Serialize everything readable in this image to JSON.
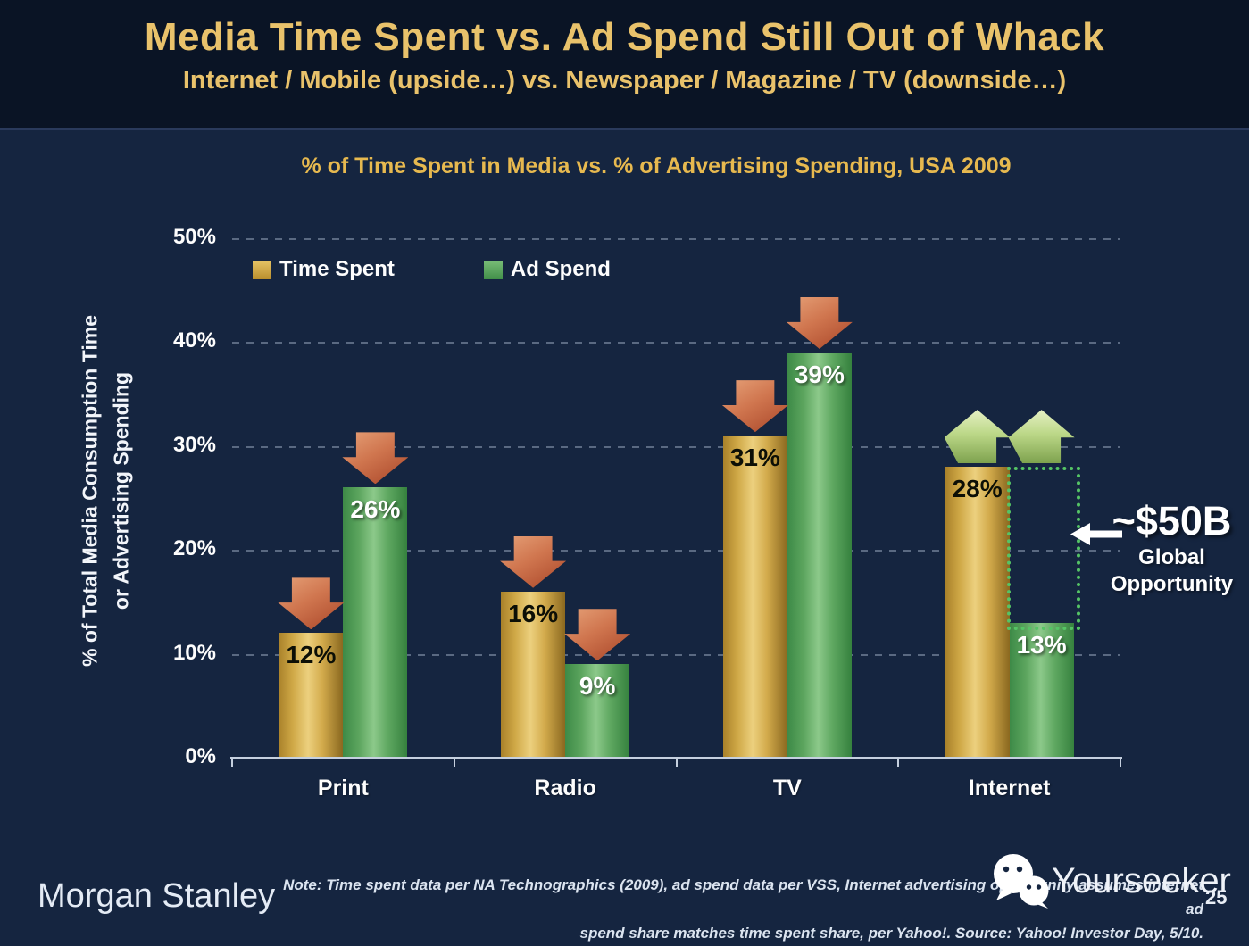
{
  "slide": {
    "title": "Media Time Spent vs. Ad Spend Still Out of Whack",
    "subtitle": "Internet / Mobile (upside…) vs. Newspaper / Magazine / TV (downside…)"
  },
  "chart_data": {
    "type": "bar",
    "title": "% of Time Spent in Media vs. % of Advertising Spending, USA 2009",
    "ylabel": "% of Total Media Consumption Time or Advertising Spending",
    "ylabel_lines": [
      "% of Total Media Consumption Time",
      "or Advertising Spending"
    ],
    "categories": [
      "Print",
      "Radio",
      "TV",
      "Internet"
    ],
    "series": [
      {
        "name": "Time Spent",
        "values": [
          12,
          16,
          31,
          28
        ],
        "color": "#d2a33a"
      },
      {
        "name": "Ad Spend",
        "values": [
          26,
          9,
          39,
          13
        ],
        "color": "#57a75a"
      }
    ],
    "ylim": [
      0,
      50
    ],
    "ytick_labels": [
      "0%",
      "10%",
      "20%",
      "30%",
      "40%",
      "50%"
    ],
    "grid": "dashed-horizontal",
    "legend_position": "top-left-inside",
    "trend_arrows": [
      "down",
      "down",
      "down",
      "up"
    ],
    "annotation": {
      "headline": "~$50B",
      "line1": "Global",
      "line2": "Opportunity",
      "category": "Internet",
      "gap_from_value": 13,
      "gap_to_value": 28
    },
    "colors": {
      "time_spent": "#d2a33a",
      "ad_spend": "#57a75a",
      "down_arrow": "#c06543",
      "up_arrow": "#b5d483",
      "title_gold": "#e9c26b",
      "background": "#152540"
    }
  },
  "footer": {
    "brand": "Morgan Stanley",
    "note_line1": "Note: Time spent data per NA Technographics (2009), ad spend data per VSS, Internet advertising opportunity assumes internet ad",
    "note_line2": "spend share matches time spent share, per Yahoo!. Source: Yahoo! Investor Day, 5/10.",
    "watermark": "Yourseeker",
    "page_number": "25"
  }
}
